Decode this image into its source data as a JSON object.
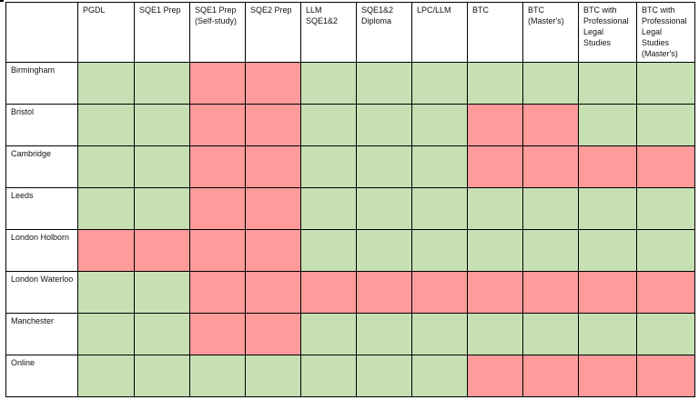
{
  "colors": {
    "available": "#c6e0b4",
    "unavailable": "#ff9b9b"
  },
  "columns": [
    "PGDL",
    "SQE1 Prep",
    "SQE1 Prep (Self-study)",
    "SQE2 Prep",
    "LLM SQE1&2",
    "SQE1&2 Diploma",
    "LPC/LLM",
    "BTC",
    "BTC (Master's)",
    "BTC with Professional Legal Studies",
    "BTC with Professional Legal Studies (Master's)"
  ],
  "rows": [
    {
      "location": "Birmingham",
      "availability": [
        1,
        1,
        0,
        0,
        1,
        1,
        1,
        1,
        1,
        1,
        1
      ]
    },
    {
      "location": "Bristol",
      "availability": [
        1,
        1,
        0,
        0,
        1,
        1,
        1,
        0,
        0,
        1,
        1
      ]
    },
    {
      "location": "Cambridge",
      "availability": [
        1,
        1,
        0,
        0,
        1,
        1,
        1,
        0,
        0,
        0,
        0
      ]
    },
    {
      "location": "Leeds",
      "availability": [
        1,
        1,
        0,
        0,
        1,
        1,
        1,
        1,
        1,
        1,
        1
      ]
    },
    {
      "location": "London Holborn",
      "availability": [
        0,
        0,
        0,
        0,
        1,
        1,
        1,
        1,
        1,
        1,
        1
      ]
    },
    {
      "location": "London Waterloo",
      "availability": [
        1,
        1,
        0,
        0,
        0,
        0,
        0,
        0,
        0,
        0,
        0
      ]
    },
    {
      "location": "Manchester",
      "availability": [
        1,
        1,
        0,
        0,
        1,
        1,
        1,
        1,
        1,
        1,
        1
      ]
    },
    {
      "location": "Online",
      "availability": [
        1,
        1,
        1,
        1,
        1,
        1,
        1,
        0,
        0,
        0,
        0
      ]
    }
  ]
}
